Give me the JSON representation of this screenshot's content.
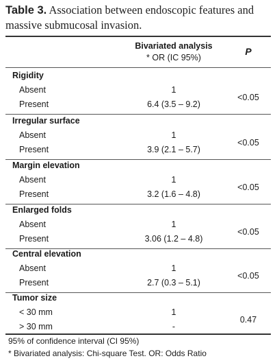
{
  "caption": {
    "label": "Table 3.",
    "text": "Association between endoscopic features and massive submucosal invasion."
  },
  "header": {
    "col1": "Bivariated analysis",
    "col1b": "* OR (IC 95%)",
    "col2": "P"
  },
  "groups": [
    {
      "name": "Rigidity",
      "rows": [
        {
          "level": "Absent",
          "value": "1"
        },
        {
          "level": "Present",
          "value": "6.4 (3.5 – 9.2)"
        }
      ],
      "p": "<0.05"
    },
    {
      "name": "Irregular surface",
      "rows": [
        {
          "level": "Absent",
          "value": "1"
        },
        {
          "level": "Present",
          "value": "3.9 (2.1 – 5.7)"
        }
      ],
      "p": "<0.05"
    },
    {
      "name": "Margin elevation",
      "rows": [
        {
          "level": "Absent",
          "value": "1"
        },
        {
          "level": "Present",
          "value": "3.2 (1.6 – 4.8)"
        }
      ],
      "p": "<0.05"
    },
    {
      "name": "Enlarged folds",
      "rows": [
        {
          "level": "Absent",
          "value": "1"
        },
        {
          "level": "Present",
          "value": "3.06 (1.2 – 4.8)"
        }
      ],
      "p": "<0.05"
    },
    {
      "name": "Central elevation",
      "rows": [
        {
          "level": "Absent",
          "value": "1"
        },
        {
          "level": "Present",
          "value": "2.7 (0.3 – 5.1)"
        }
      ],
      "p": "<0.05"
    },
    {
      "name": "Tumor size",
      "rows": [
        {
          "level": "< 30 mm",
          "value": "1"
        },
        {
          "level": "> 30 mm",
          "value": "-"
        }
      ],
      "p": "0.47"
    }
  ],
  "footnotes": [
    "95% of confidence interval (CI 95%)",
    "* Bivariated analysis: Chi-square Test. OR: Odds Ratio"
  ]
}
